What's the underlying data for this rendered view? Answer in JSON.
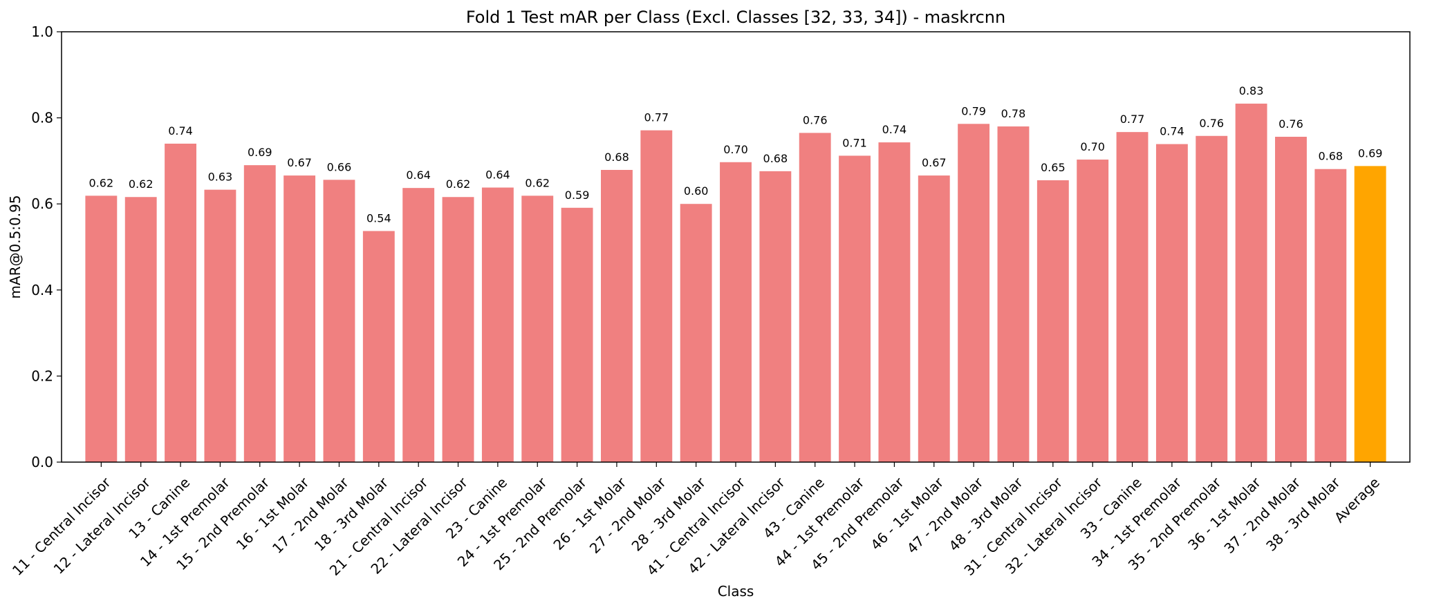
{
  "chart_data": {
    "type": "bar",
    "title": "Fold 1 Test mAR per Class (Excl. Classes [32, 33, 34]) - maskrcnn",
    "xlabel": "Class",
    "ylabel": "mAR@0.5:0.95",
    "ylim": [
      0,
      1.0
    ],
    "yticks": [
      "0.0",
      "0.2",
      "0.4",
      "0.6",
      "0.8",
      "1.0"
    ],
    "grid": false,
    "colors": {
      "bar": "#f08080",
      "average_bar": "#ffa500"
    },
    "categories": [
      "11 - Central Incisor",
      "12 - Lateral Incisor",
      "13 - Canine",
      "14 - 1st Premolar",
      "15 - 2nd Premolar",
      "16 - 1st Molar",
      "17 - 2nd Molar",
      "18 - 3rd Molar",
      "21 - Central Incisor",
      "22 - Lateral Incisor",
      "23 - Canine",
      "24 - 1st Premolar",
      "25 - 2nd Premolar",
      "26 - 1st Molar",
      "27 - 2nd Molar",
      "28 - 3rd Molar",
      "41 - Central Incisor",
      "42 - Lateral Incisor",
      "43 - Canine",
      "44 - 1st Premolar",
      "45 - 2nd Premolar",
      "46 - 1st Molar",
      "47 - 2nd Molar",
      "48 - 3rd Molar",
      "31 - Central Incisor",
      "32 - Lateral Incisor",
      "33 - Canine",
      "34 - 1st Premolar",
      "35 - 2nd Premolar",
      "36 - 1st Molar",
      "37 - 2nd Molar",
      "38 - 3rd Molar",
      "Average"
    ],
    "values": [
      0.619,
      0.616,
      0.74,
      0.633,
      0.69,
      0.666,
      0.656,
      0.537,
      0.637,
      0.616,
      0.638,
      0.619,
      0.591,
      0.679,
      0.771,
      0.6,
      0.697,
      0.676,
      0.765,
      0.712,
      0.743,
      0.666,
      0.786,
      0.78,
      0.655,
      0.703,
      0.767,
      0.739,
      0.758,
      0.833,
      0.756,
      0.681,
      0.688
    ],
    "labels": [
      "0.62",
      "0.62",
      "0.74",
      "0.63",
      "0.69",
      "0.67",
      "0.66",
      "0.54",
      "0.64",
      "0.62",
      "0.64",
      "0.62",
      "0.59",
      "0.68",
      "0.77",
      "0.60",
      "0.70",
      "0.68",
      "0.76",
      "0.71",
      "0.74",
      "0.67",
      "0.79",
      "0.78",
      "0.65",
      "0.70",
      "0.77",
      "0.74",
      "0.76",
      "0.83",
      "0.76",
      "0.68",
      "0.69"
    ]
  }
}
